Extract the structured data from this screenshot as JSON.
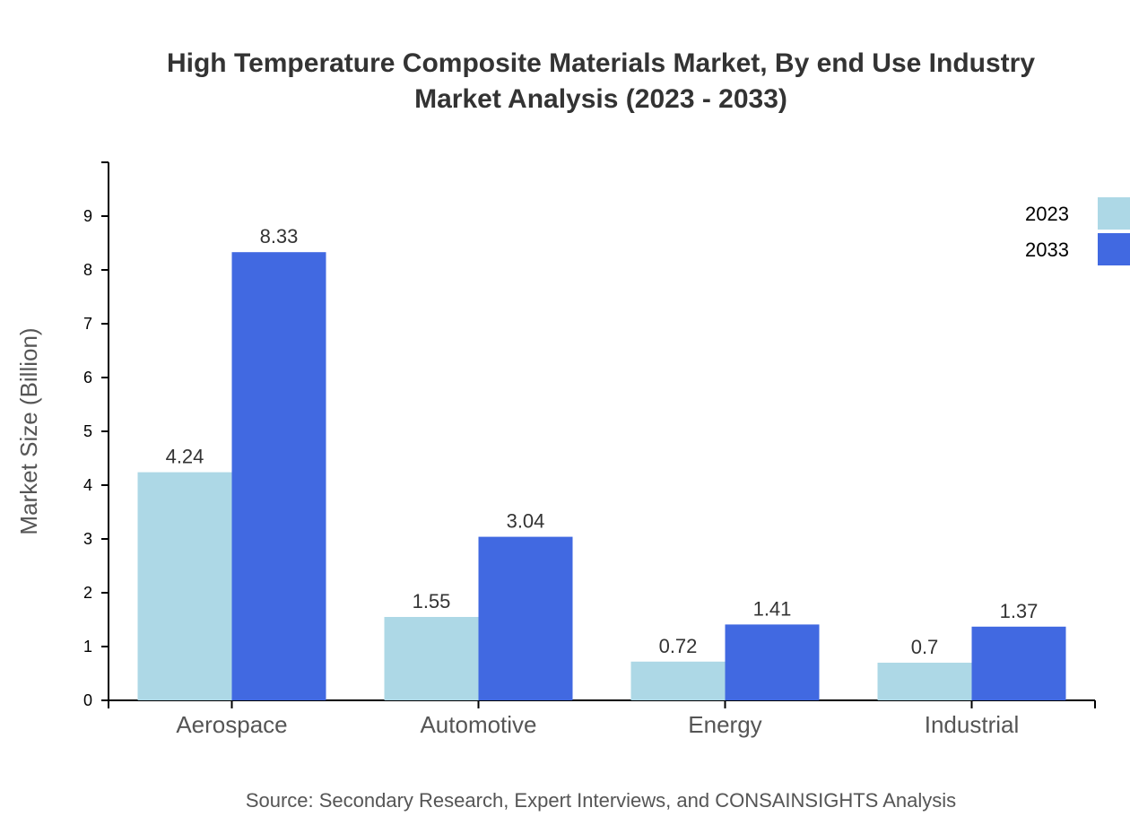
{
  "chart_data": {
    "type": "bar",
    "title": [
      "High Temperature Composite Materials Market, By end Use Industry",
      "Market Analysis (2023 - 2033)"
    ],
    "ylabel": "Market Size (Billion)",
    "xlabel": "",
    "ylim": [
      0,
      10
    ],
    "yticks": [
      0,
      1,
      2,
      3,
      4,
      5,
      6,
      7,
      8,
      9
    ],
    "categories": [
      "Aerospace",
      "Automotive",
      "Energy",
      "Industrial"
    ],
    "series": [
      {
        "name": "2023",
        "color": "#add8e6",
        "values": [
          4.24,
          1.55,
          0.72,
          0.7
        ]
      },
      {
        "name": "2033",
        "color": "#4169e1",
        "values": [
          8.33,
          3.04,
          1.41,
          1.37
        ]
      }
    ],
    "legend_position": "top-right",
    "grid": false,
    "source": "Source: Secondary Research, Expert Interviews, and CONSAINSIGHTS Analysis"
  }
}
